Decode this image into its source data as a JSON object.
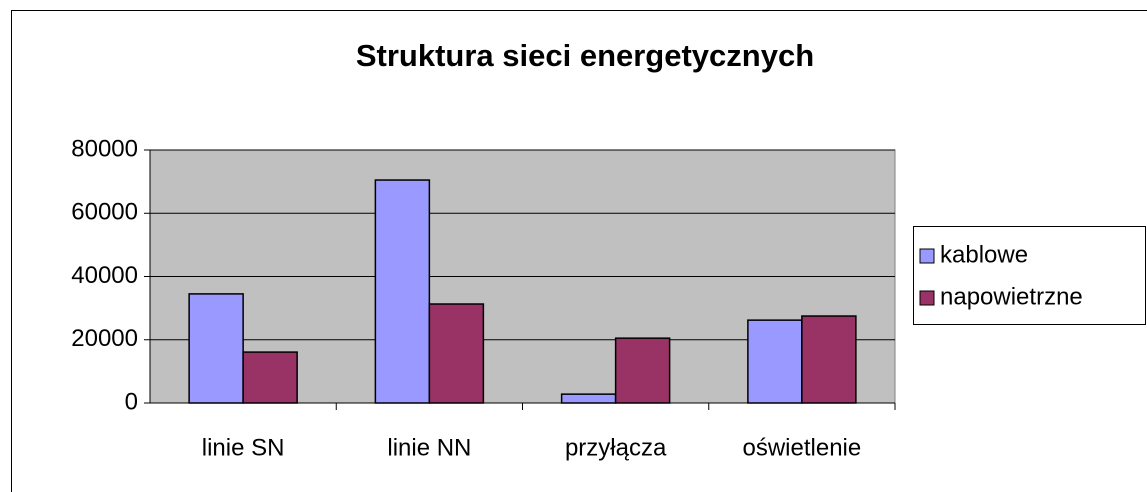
{
  "chart_data": {
    "type": "bar",
    "title": "Struktura sieci energetycznych",
    "categories": [
      "linie SN",
      "linie NN",
      "przyłącza",
      "oświetlenie"
    ],
    "series": [
      {
        "name": "kablowe",
        "color": "#9999ff",
        "values": [
          34500,
          70500,
          2800,
          26200
        ]
      },
      {
        "name": "napowietrzne",
        "color": "#993366",
        "values": [
          16100,
          31300,
          20500,
          27500
        ]
      }
    ],
    "ylim": [
      0,
      80000
    ],
    "yticks": [
      0,
      20000,
      40000,
      60000,
      80000
    ],
    "grid": true,
    "legend": "right"
  }
}
